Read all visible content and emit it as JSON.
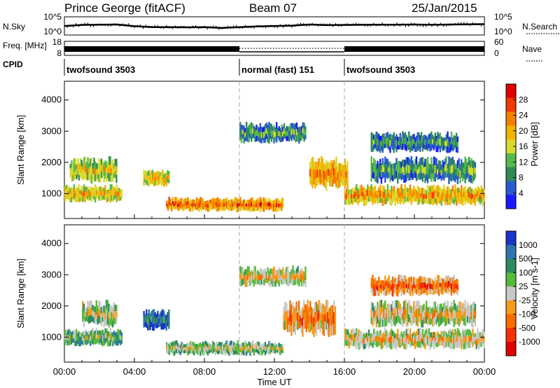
{
  "header": {
    "station": "Prince George (fitACF)",
    "beam": "Beam 07",
    "date": "25/Jan/2015"
  },
  "colors": {
    "power_scale": [
      "#1a1aff",
      "#2a5ad0",
      "#2f8a58",
      "#57b84d",
      "#d9d930",
      "#f2b400",
      "#f57f00",
      "#ef3a00",
      "#e00000"
    ],
    "velocity_scale": [
      "#1b35c9",
      "#2f74b0",
      "#2e8a60",
      "#55bb3c",
      "#c8c8c8",
      "#f59a1a",
      "#f56d00",
      "#f53000",
      "#e00000"
    ],
    "data_black": "#000000",
    "boundary_gray": "#aaaaaa"
  },
  "chart_data": [
    {
      "type": "line",
      "name": "noise",
      "left_label": "N.Sky",
      "right_label": "N.Search",
      "left_ticks": [
        "10^5",
        "10^0"
      ],
      "right_ticks": [
        "10^5",
        "10^0"
      ],
      "yscale": "log",
      "ylim": [
        1,
        100000
      ],
      "x_hours": [
        0,
        1,
        2,
        3,
        4,
        5,
        6,
        7,
        8,
        9,
        10,
        11,
        12,
        13,
        14,
        15,
        16,
        17,
        18,
        19,
        20,
        21,
        22,
        23,
        24
      ],
      "values": [
        300,
        700,
        900,
        1000,
        250,
        120,
        110,
        100,
        120,
        60,
        110,
        200,
        300,
        400,
        1000,
        600,
        700,
        800,
        900,
        900,
        1000,
        800,
        1000,
        1100,
        1300
      ]
    },
    {
      "type": "step",
      "name": "frequency",
      "left_label": "Freq. [MHz]",
      "right_label": "Nave",
      "left_ticks": [
        "18",
        "8"
      ],
      "right_ticks": [
        "60",
        "0"
      ],
      "ylim": [
        8,
        18
      ],
      "segments": [
        {
          "start_hour": 0,
          "end_hour": 10,
          "style": "dense"
        },
        {
          "start_hour": 10,
          "end_hour": 16,
          "style": "dotted"
        },
        {
          "start_hour": 16,
          "end_hour": 24,
          "style": "dense"
        }
      ]
    },
    {
      "type": "table",
      "name": "cpid",
      "label": "CPID",
      "boundaries_hours": [
        10,
        16
      ],
      "modes": [
        {
          "start_hour": 0,
          "end_hour": 10,
          "label": "twofsound 3503"
        },
        {
          "start_hour": 10,
          "end_hour": 16,
          "label": "normal (fast) 151"
        },
        {
          "start_hour": 16,
          "end_hour": 24,
          "label": "twofsound 3503"
        }
      ]
    },
    {
      "type": "heatmap",
      "name": "power",
      "ylabel": "Slant Range [km]",
      "yticks": [
        1000,
        2000,
        3000,
        4000
      ],
      "ylim": [
        200,
        4600
      ],
      "xlim": [
        0,
        24
      ],
      "colorbar_label": "Power [dB]",
      "colorbar_ticks": [
        "4",
        "8",
        "12",
        "16",
        "20",
        "24",
        "28"
      ],
      "colorbar_range": [
        0,
        30
      ],
      "regions": [
        {
          "t0": 0,
          "t1": 3.3,
          "r0": 700,
          "r1": 1300,
          "c": 0.55
        },
        {
          "t0": 0.3,
          "t1": 3.0,
          "r0": 1300,
          "r1": 2200,
          "c": 0.45
        },
        {
          "t0": 4.5,
          "t1": 6.0,
          "r0": 1200,
          "r1": 1800,
          "c": 0.55
        },
        {
          "t0": 5.8,
          "t1": 12.5,
          "r0": 400,
          "r1": 900,
          "c": 0.7
        },
        {
          "t0": 10.0,
          "t1": 13.8,
          "r0": 2600,
          "r1": 3300,
          "c": 0.25
        },
        {
          "t0": 14.0,
          "t1": 16.2,
          "r0": 1100,
          "r1": 2200,
          "c": 0.65
        },
        {
          "t0": 16.0,
          "t1": 24.0,
          "r0": 600,
          "r1": 1300,
          "c": 0.6
        },
        {
          "t0": 17.5,
          "t1": 23.5,
          "r0": 1300,
          "r1": 2200,
          "c": 0.25
        },
        {
          "t0": 17.5,
          "t1": 22.5,
          "r0": 2300,
          "r1": 3000,
          "c": 0.2
        }
      ]
    },
    {
      "type": "heatmap",
      "name": "velocity",
      "ylabel": "Slant Range [km]",
      "yticks": [
        1000,
        2000,
        3000,
        4000
      ],
      "ylim": [
        200,
        4600
      ],
      "xlim": [
        0,
        24
      ],
      "xticks": [
        "00:00",
        "04:00",
        "08:00",
        "12:00",
        "16:00",
        "20:00",
        "00:00"
      ],
      "xtick_hours": [
        0,
        4,
        8,
        12,
        16,
        20,
        24
      ],
      "xlabel": "Time UT",
      "colorbar_label": "Velocity [m s-1]",
      "colorbar_ticks": [
        "1000",
        "500",
        "100",
        "25",
        "-25",
        "-100",
        "-500",
        "-1000"
      ],
      "colorbar_range": [
        -1000,
        1000
      ],
      "regions": [
        {
          "t0": 0,
          "t1": 3.3,
          "r0": 700,
          "r1": 1300,
          "c": 0.35
        },
        {
          "t0": 1.0,
          "t1": 3.0,
          "r0": 1300,
          "r1": 2200,
          "c": 0.45
        },
        {
          "t0": 4.5,
          "t1": 6.0,
          "r0": 1200,
          "r1": 1900,
          "c": 0.1
        },
        {
          "t0": 5.8,
          "t1": 12.5,
          "r0": 400,
          "r1": 900,
          "c": 0.4
        },
        {
          "t0": 10.0,
          "t1": 13.8,
          "r0": 2600,
          "r1": 3300,
          "c": 0.5
        },
        {
          "t0": 12.5,
          "t1": 15.5,
          "r0": 1000,
          "r1": 2200,
          "c": 0.65
        },
        {
          "t0": 16.0,
          "t1": 24.0,
          "r0": 600,
          "r1": 1300,
          "c": 0.5
        },
        {
          "t0": 17.5,
          "t1": 23.5,
          "r0": 1300,
          "r1": 2200,
          "c": 0.5
        },
        {
          "t0": 17.5,
          "t1": 22.5,
          "r0": 2300,
          "r1": 3000,
          "c": 0.7
        }
      ]
    }
  ]
}
